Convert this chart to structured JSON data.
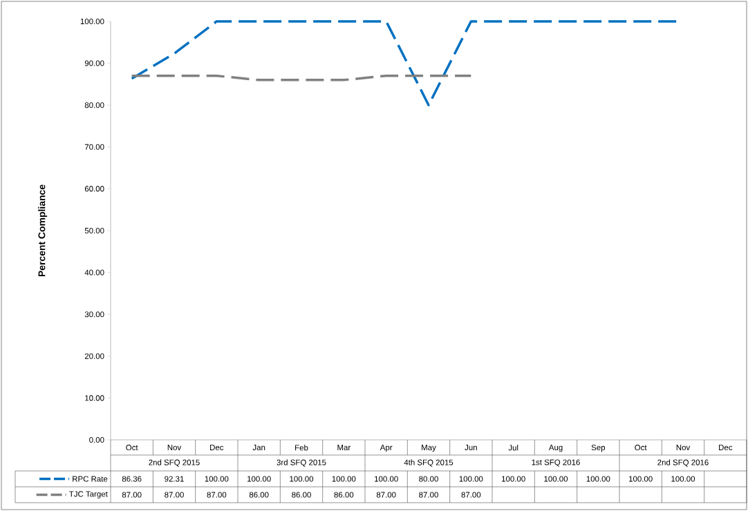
{
  "chart_data": {
    "type": "line",
    "ylabel": "Percent Compliance",
    "categories": [
      "Oct",
      "Nov",
      "Dec",
      "Jan",
      "Feb",
      "Mar",
      "Apr",
      "May",
      "Jun",
      "Jul",
      "Aug",
      "Sep",
      "Oct",
      "Nov",
      "Dec"
    ],
    "annotations": [
      "2nd SFQ 2015",
      "3rd SFQ 2015",
      "4th SFQ 2015",
      "1st SFQ 2016",
      "2nd SFQ 2016"
    ],
    "series": [
      {
        "name": "RPC Rate",
        "color": "#0070c0",
        "values": [
          86.36,
          92.31,
          100,
          100,
          100,
          100,
          100,
          80,
          100,
          100,
          100,
          100,
          100,
          100,
          null
        ],
        "value_labels": [
          "86.36",
          "92.31",
          "100.00",
          "100.00",
          "100.00",
          "100.00",
          "100.00",
          "80.00",
          "100.00",
          "100.00",
          "100.00",
          "100.00",
          "100.00",
          "100.00",
          null
        ]
      },
      {
        "name": "TJC Target",
        "color": "#808080",
        "values": [
          87,
          87,
          87,
          86,
          86,
          86,
          87,
          87,
          87,
          null,
          null,
          null,
          null,
          null,
          null
        ],
        "value_labels": [
          "87.00",
          "87.00",
          "87.00",
          "86.00",
          "86.00",
          "86.00",
          "87.00",
          "87.00",
          "87.00",
          null,
          null,
          null,
          null,
          null,
          null
        ]
      }
    ],
    "ylim": [
      0,
      100
    ],
    "yticks": [
      {
        "value": 0,
        "label": "0.00"
      },
      {
        "value": 10,
        "label": "10.00"
      },
      {
        "value": 20,
        "label": "20.00"
      },
      {
        "value": 30,
        "label": "30.00"
      },
      {
        "value": 40,
        "label": "40.00"
      },
      {
        "value": 50,
        "label": "50.00"
      },
      {
        "value": 60,
        "label": "60.00"
      },
      {
        "value": 70,
        "label": "70.00"
      },
      {
        "value": 80,
        "label": "80.00"
      },
      {
        "value": 90,
        "label": "90.00"
      },
      {
        "value": 100,
        "label": "100.00"
      }
    ],
    "grid": false,
    "legend": "bottom",
    "marker": "none",
    "line_style": "dashed"
  }
}
